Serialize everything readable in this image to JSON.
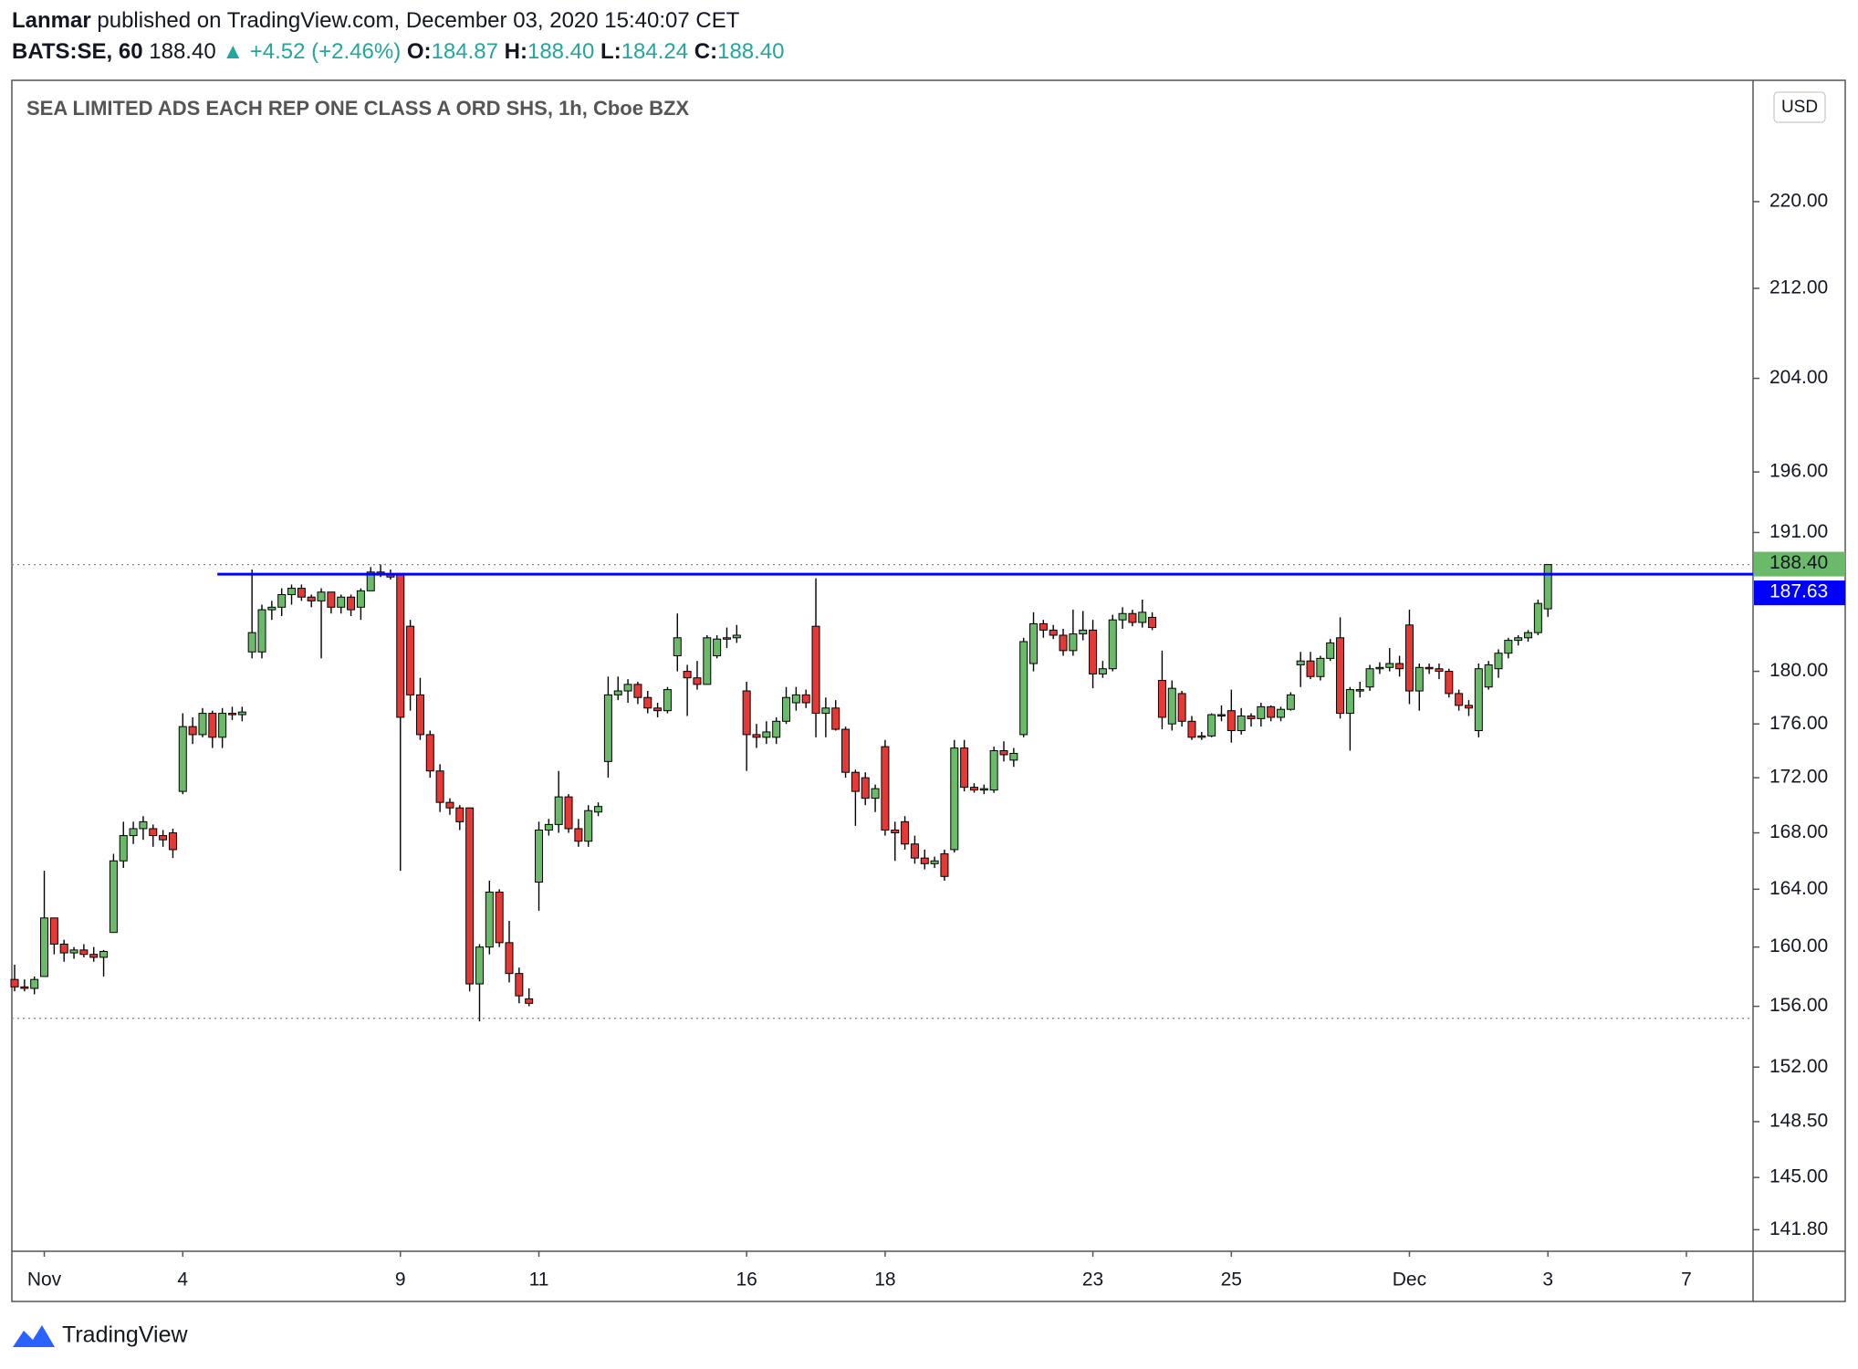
{
  "header": {
    "author": "Lanmar",
    "published": "published on TradingView.com, December 03, 2020 15:40:07 CET",
    "symbol": "BATS:SE, 60",
    "last": "188.40",
    "change": "▲ +4.52 (+2.46%)",
    "ohlc": [
      {
        "label": "O:",
        "value": "184.87"
      },
      {
        "label": "H:",
        "value": "188.40"
      },
      {
        "label": "L:",
        "value": "184.24"
      },
      {
        "label": "C:",
        "value": "188.40"
      }
    ]
  },
  "chart_data": {
    "type": "candlestick",
    "title": "SEA LIMITED ADS EACH REP ONE CLASS A ORD SHS, 1h, Cboe BZX",
    "currency": "USD",
    "log_scale": true,
    "up_color": "#6aba6a",
    "down_color": "#e53935",
    "categories": [
      null,
      null,
      null,
      "Nov",
      null,
      null,
      null,
      null,
      null,
      null,
      null,
      null,
      null,
      null,
      null,
      null,
      null,
      "4",
      null,
      null,
      null,
      null,
      null,
      null,
      null,
      null,
      null,
      null,
      null,
      null,
      null,
      null,
      null,
      null,
      null,
      null,
      null,
      null,
      null,
      "9",
      null,
      null,
      null,
      null,
      null,
      null,
      null,
      null,
      null,
      null,
      null,
      null,
      null,
      "11",
      null,
      null,
      null,
      null,
      null,
      null,
      null,
      null,
      null,
      null,
      null,
      null,
      null,
      null,
      null,
      null,
      null,
      null,
      null,
      null,
      "16",
      null,
      null,
      null,
      null,
      null,
      null,
      null,
      null,
      null,
      null,
      null,
      null,
      null,
      "18",
      null,
      null,
      null,
      null,
      null,
      null,
      null,
      null,
      null,
      null,
      null,
      null,
      null,
      null,
      null,
      null,
      null,
      null,
      null,
      null,
      "23",
      null,
      null,
      null,
      null,
      null,
      null,
      null,
      null,
      null,
      null,
      null,
      null,
      null,
      "25",
      null,
      null,
      null,
      null,
      null,
      null,
      null,
      null,
      null,
      null,
      null,
      null,
      null,
      null,
      null,
      null,
      null,
      "Dec",
      null,
      null,
      null,
      null,
      null,
      null,
      null,
      null,
      null,
      null,
      null,
      null,
      null,
      "3",
      null,
      null,
      null,
      null,
      null,
      null,
      null,
      null,
      null,
      null,
      null,
      null,
      null,
      "7"
    ],
    "open": [
      157.8,
      157.3,
      157.2,
      158,
      162,
      160.2,
      159.6,
      159.8,
      159.5,
      159.3,
      161,
      166,
      167.8,
      168.3,
      168.3,
      167.8,
      168,
      171,
      175.8,
      175.2,
      176.8,
      175,
      176.8,
      176.7,
      181.5,
      181.5,
      184.8,
      185,
      186,
      186.5,
      185.8,
      185.5,
      186.2,
      185,
      185.8,
      185,
      186.3,
      187.8,
      187.6,
      187.6,
      183.5,
      178.2,
      175.2,
      172.5,
      170.2,
      169.8,
      169.8,
      157.5,
      160,
      163.8,
      160.3,
      158.2,
      156.5,
      164.5,
      168.2,
      168.6,
      170.6,
      168.3,
      167.4,
      169.5,
      173.2,
      178.2,
      178.5,
      179,
      178,
      177.2,
      177,
      181.2,
      180,
      179.5,
      179,
      181.2,
      182.5,
      182.6,
      178.5,
      175.2,
      175,
      175,
      176.2,
      177.6,
      178.2,
      183.5,
      176.8,
      177.2,
      175.6,
      172.4,
      172,
      170.5,
      174.3,
      168.2,
      168.8,
      167.2,
      166.2,
      165.8,
      166.5,
      166.8,
      174.2,
      171.3,
      171.1,
      171.1,
      174,
      173.3,
      175.2,
      180.6,
      183.7,
      183.2,
      182.8,
      181.6,
      182.9,
      183.2,
      179.8,
      180.2,
      184,
      184.5,
      183.8,
      184.2,
      179.3,
      176,
      178.3,
      176.2,
      175,
      175.1,
      176.7,
      177,
      175.5,
      176.6,
      176.4,
      177.3,
      176.5,
      177.1,
      180.5,
      180.8,
      179.6,
      181,
      182.6,
      176.8,
      178.6,
      178.8,
      180.2,
      180.3,
      180.6,
      183.6,
      178.5,
      180.3,
      180.2,
      180,
      178.3,
      177.4,
      175.5,
      178.8,
      180.2,
      181.4,
      182.4,
      182.6,
      183,
      184.87,
      null,
      null,
      null,
      null,
      null,
      null,
      null,
      null,
      null,
      null,
      null,
      null,
      null,
      null
    ],
    "high": [
      158.8,
      157.8,
      158,
      165.3,
      162,
      160.5,
      160,
      160.2,
      160,
      159.8,
      166.5,
      168.8,
      168.8,
      169.2,
      168.6,
      168.2,
      168.3,
      176.8,
      176.5,
      177.2,
      177,
      177.2,
      177.3,
      177.3,
      188,
      185.2,
      185.5,
      186.5,
      186.8,
      186.8,
      186,
      186.5,
      186.2,
      186,
      186,
      186.5,
      188.2,
      188.4,
      188,
      187.6,
      184,
      179.5,
      175.5,
      173,
      170.5,
      170,
      169.8,
      160.2,
      164.6,
      164,
      161.8,
      158.6,
      157.2,
      168.8,
      169,
      172.5,
      170.8,
      169,
      170,
      170.2,
      179.6,
      179.6,
      179.4,
      179.2,
      178.5,
      177.6,
      178.8,
      184.5,
      180.5,
      180.8,
      182.8,
      182.8,
      183.4,
      183.6,
      179.2,
      176,
      176.2,
      176.5,
      178.8,
      178.8,
      178.6,
      187.3,
      178,
      177.8,
      175.8,
      172.6,
      172.4,
      171.5,
      174.8,
      168.8,
      169.2,
      167.8,
      166.8,
      166.3,
      166.8,
      174.8,
      174.8,
      171.6,
      171.5,
      174.3,
      174.7,
      174.2,
      182.6,
      184.6,
      184,
      183.6,
      183.3,
      184.8,
      184.7,
      184,
      180.8,
      184.4,
      185,
      184.8,
      185.6,
      184.6,
      181.6,
      179.3,
      178.5,
      176.6,
      175.4,
      176.8,
      177.4,
      178.6,
      177.2,
      176.8,
      177.6,
      177.4,
      177.3,
      178.4,
      181.5,
      181.5,
      181.2,
      182.5,
      184.2,
      178.8,
      179.2,
      180.5,
      180.7,
      181.8,
      181.2,
      184.8,
      180.6,
      180.6,
      180.6,
      180.2,
      178.6,
      177.8,
      180.6,
      180.8,
      181.7,
      182.6,
      182.8,
      183.2,
      185.6,
      188.4,
      null,
      null,
      null,
      null,
      null,
      null,
      null,
      null,
      null,
      null,
      null,
      null,
      null,
      null
    ],
    "low": [
      157,
      157,
      156.8,
      158,
      159.5,
      159,
      159.2,
      159.3,
      159,
      158,
      161,
      165.5,
      167.2,
      167.5,
      167,
      167,
      166.2,
      170.8,
      174.5,
      175,
      174.2,
      174.2,
      176.3,
      176.2,
      181,
      181,
      184,
      184.3,
      185.2,
      185.5,
      185,
      181,
      184.5,
      184.5,
      184.3,
      184,
      186.3,
      187.4,
      187.2,
      165.3,
      177,
      174.8,
      172,
      169.5,
      169.3,
      168.2,
      157,
      155,
      159.5,
      160,
      157.6,
      156.2,
      156,
      162.5,
      167.8,
      168,
      168,
      167,
      167,
      169.2,
      172,
      177.8,
      177.6,
      177.5,
      176.8,
      176.5,
      176.8,
      180,
      176.6,
      178.6,
      179,
      181,
      181.8,
      182.2,
      172.5,
      174.2,
      174.5,
      174.5,
      176,
      177,
      177.2,
      175,
      175,
      175.5,
      172,
      168.5,
      170,
      169.5,
      167.8,
      166,
      166.8,
      165.8,
      165.4,
      165.5,
      164.6,
      166.6,
      171,
      170.9,
      170.8,
      170.9,
      173.2,
      172.8,
      175,
      180,
      182.6,
      182.5,
      181.2,
      181.2,
      182.4,
      178.7,
      179.5,
      180,
      183.3,
      183.5,
      183.4,
      183.2,
      175.6,
      175.5,
      175.8,
      174.8,
      174.8,
      175,
      176.2,
      174.6,
      175.2,
      175.8,
      175.8,
      176.2,
      176.2,
      177,
      178.8,
      179.4,
      179.3,
      180.8,
      176.4,
      174,
      178,
      178.5,
      179.8,
      180,
      179.6,
      177.5,
      177,
      179.8,
      179.4,
      178,
      177,
      176.6,
      175,
      178.6,
      179.5,
      181,
      182,
      182.3,
      182.8,
      184.24,
      null,
      null,
      null,
      null,
      null,
      null,
      null,
      null,
      null,
      null,
      null,
      null,
      null,
      null
    ],
    "close": [
      157.3,
      157.2,
      157.8,
      162,
      160.2,
      159.6,
      159.8,
      159.5,
      159.3,
      159.7,
      166,
      167.8,
      168.3,
      168.8,
      167.8,
      167.5,
      166.8,
      175.8,
      175.2,
      176.8,
      175,
      176.8,
      176.7,
      176.9,
      183,
      184.8,
      185,
      186,
      186.5,
      185.8,
      185.5,
      186.2,
      185,
      185.8,
      184.8,
      186.3,
      187.8,
      187.6,
      187.4,
      176.5,
      178.2,
      175.2,
      172.5,
      170.2,
      169.8,
      168.8,
      157.5,
      160,
      163.8,
      160.3,
      158.2,
      156.7,
      156.2,
      168.2,
      168.6,
      170.6,
      168.3,
      167.4,
      169.6,
      169.9,
      178.2,
      178.5,
      179,
      178,
      177.2,
      177,
      178.6,
      182.6,
      179.5,
      179,
      182.6,
      182.5,
      182.6,
      182.8,
      175.2,
      175,
      175.4,
      176.2,
      178,
      178.2,
      177.6,
      176.8,
      177.2,
      175.6,
      172.4,
      171,
      170.5,
      171.2,
      168.2,
      168,
      167.2,
      166.2,
      165.8,
      166,
      164.9,
      174.2,
      171.3,
      171.1,
      171.2,
      174,
      173.7,
      173.8,
      182.3,
      183.7,
      183.2,
      182.8,
      181.6,
      182.9,
      183.2,
      179.8,
      180.2,
      184,
      184.5,
      183.8,
      184.6,
      183.4,
      176.5,
      178.7,
      176.2,
      175,
      175.1,
      176.7,
      176.6,
      175.5,
      176.6,
      176.4,
      177.3,
      176.5,
      177.1,
      178.2,
      180.8,
      179.6,
      181,
      182.2,
      176.8,
      178.6,
      178.6,
      180.2,
      180.3,
      180.6,
      180.2,
      178.5,
      180.3,
      180.2,
      180,
      178.3,
      177.4,
      177.2,
      180.2,
      180.5,
      181.4,
      182.4,
      182.6,
      183,
      185.3,
      188.4,
      null,
      null,
      null,
      null,
      null,
      null,
      null,
      null,
      null,
      null,
      null,
      null,
      null,
      null
    ],
    "ylim": [
      140.5,
      231.7
    ],
    "yticks": [
      {
        "value": 141.8,
        "label": "141.80"
      },
      {
        "value": 145,
        "label": "145.00"
      },
      {
        "value": 148.5,
        "label": "148.50"
      },
      {
        "value": 152,
        "label": "152.00"
      },
      {
        "value": 156,
        "label": "156.00"
      },
      {
        "value": 160,
        "label": "160.00"
      },
      {
        "value": 164,
        "label": "164.00"
      },
      {
        "value": 168,
        "label": "168.00"
      },
      {
        "value": 172,
        "label": "172.00"
      },
      {
        "value": 176,
        "label": "176.00"
      },
      {
        "value": 180,
        "label": "180.00"
      },
      {
        "value": 191,
        "label": "191.00"
      },
      {
        "value": 196,
        "label": "196.00"
      },
      {
        "value": 204,
        "label": "204.00"
      },
      {
        "value": 212,
        "label": "212.00"
      },
      {
        "value": 220,
        "label": "220.00"
      }
    ],
    "horizontal_line": {
      "value": 187.63,
      "label": "187.63",
      "color": "#0000ff",
      "from_category": 20.5
    },
    "last_price": {
      "value": 188.4,
      "label": "188.40",
      "color": "#6aba6a"
    },
    "low_line": {
      "value": 155.2
    }
  },
  "footer": {
    "brand": "TradingView"
  }
}
